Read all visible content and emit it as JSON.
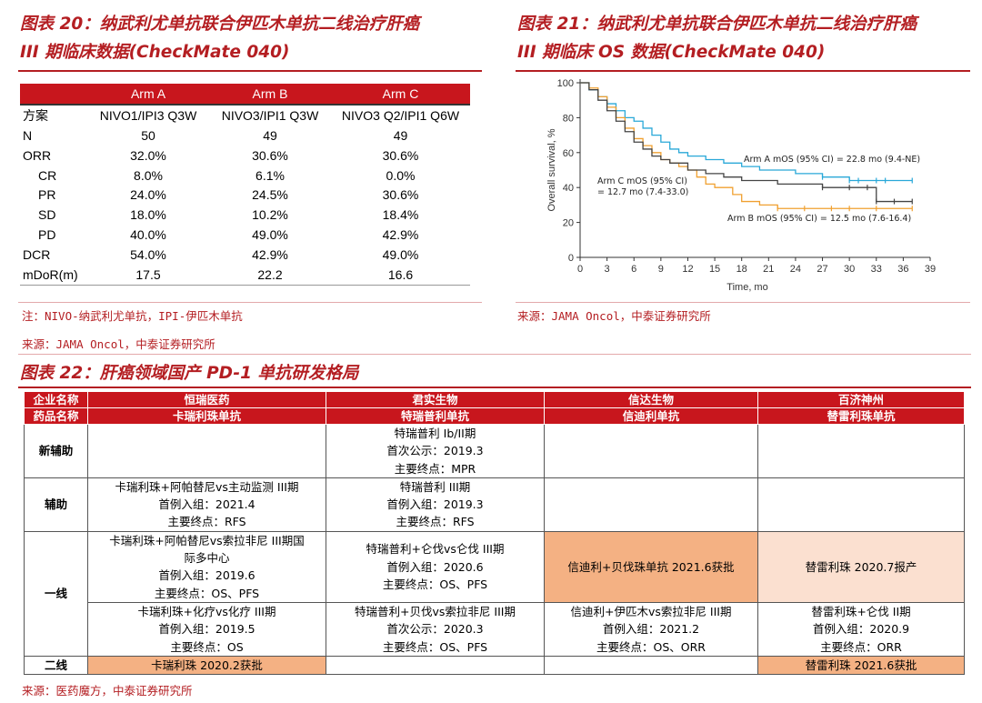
{
  "fig20": {
    "title_line1": "图表 20：纳武利尤单抗联合伊匹木单抗二线治疗肝癌",
    "title_line2": "III 期临床数据(CheckMate 040)",
    "columns": [
      "",
      "Arm A",
      "Arm B",
      "Arm C"
    ],
    "rows": [
      {
        "label": "方案",
        "a": "NIVO1/IPI3 Q3W",
        "b": "NIVO3/IPI1 Q3W",
        "c": "NIVO3 Q2/IPI1 Q6W"
      },
      {
        "label": "N",
        "a": "50",
        "b": "49",
        "c": "49"
      },
      {
        "label": "ORR",
        "a": "32.0%",
        "b": "30.6%",
        "c": "30.6%"
      },
      {
        "label": "CR",
        "a": "8.0%",
        "b": "6.1%",
        "c": "0.0%"
      },
      {
        "label": "PR",
        "a": "24.0%",
        "b": "24.5%",
        "c": "30.6%"
      },
      {
        "label": "SD",
        "a": "18.0%",
        "b": "10.2%",
        "c": "18.4%"
      },
      {
        "label": "PD",
        "a": "40.0%",
        "b": "49.0%",
        "c": "42.9%"
      },
      {
        "label": "DCR",
        "a": "54.0%",
        "b": "42.9%",
        "c": "49.0%"
      },
      {
        "label": "mDoR(m)",
        "a": "17.5",
        "b": "22.2",
        "c": "16.6"
      }
    ],
    "note": "注：NIVO-纳武利尤单抗，IPI-伊匹木单抗",
    "source": "来源：JAMA Oncol，中泰证券研究所"
  },
  "fig21": {
    "title_line1": "图表 21：纳武利尤单抗联合伊匹木单抗二线治疗肝癌",
    "title_line2": "III 期临床 OS 数据(CheckMate 040)",
    "source": "来源：JAMA Oncol，中泰证券研究所"
  },
  "chart_data": {
    "type": "line",
    "title": "",
    "xlabel": "Time, mo",
    "ylabel": "Overall survival, %",
    "xlim": [
      0,
      39
    ],
    "ylim": [
      0,
      100
    ],
    "xticks": [
      0,
      3,
      6,
      9,
      12,
      15,
      18,
      21,
      24,
      27,
      30,
      33,
      36,
      39
    ],
    "yticks": [
      0,
      20,
      40,
      60,
      80,
      100
    ],
    "series": [
      {
        "name": "Arm A",
        "color": "#29a8d8",
        "x": [
          0,
          1,
          2,
          3,
          4,
          5,
          6,
          7,
          8,
          9,
          10,
          11,
          12,
          14,
          16,
          18,
          20,
          22,
          24,
          27,
          30,
          31,
          33,
          34,
          37
        ],
        "y": [
          100,
          96,
          92,
          88,
          84,
          80,
          78,
          74,
          70,
          66,
          62,
          60,
          58,
          56,
          54,
          52,
          50,
          50,
          48,
          46,
          44,
          44,
          44,
          44,
          44
        ]
      },
      {
        "name": "Arm B",
        "color": "#f0a030",
        "x": [
          0,
          1,
          2,
          3,
          4,
          5,
          6,
          7,
          8,
          9,
          10,
          11,
          12,
          13,
          14,
          15,
          17,
          18,
          20,
          22,
          25,
          28,
          30,
          33,
          37
        ],
        "y": [
          100,
          97,
          92,
          86,
          80,
          74,
          68,
          64,
          60,
          56,
          54,
          52,
          50,
          46,
          42,
          40,
          36,
          32,
          30,
          28,
          28,
          28,
          28,
          28,
          28
        ]
      },
      {
        "name": "Arm C",
        "color": "#444444",
        "x": [
          0,
          1,
          2,
          3,
          4,
          5,
          6,
          7,
          8,
          9,
          10,
          12,
          14,
          16,
          18,
          20,
          22,
          24,
          27,
          30,
          32,
          33,
          35,
          37
        ],
        "y": [
          100,
          96,
          90,
          84,
          78,
          72,
          66,
          62,
          58,
          56,
          54,
          50,
          48,
          46,
          44,
          44,
          42,
          42,
          40,
          40,
          40,
          32,
          32,
          32
        ]
      }
    ],
    "annotations": {
      "arm_a": "Arm A mOS (95% CI) = 22.8 mo (9.4-NE)",
      "arm_b": "Arm B mOS (95% CI) = 12.5 mo (7.6-16.4)",
      "arm_c_line1": "Arm C mOS (95% CI)",
      "arm_c_line2": "= 12.7 mo (7.4-33.0)"
    }
  },
  "fig22": {
    "title": "图表 22：肝癌领域国产 PD-1 单抗研发格局",
    "header_company_label": "企业名称",
    "header_drug_label": "药品名称",
    "companies": [
      "恒瑞医药",
      "君实生物",
      "信达生物",
      "百济神州"
    ],
    "drugs": [
      "卡瑞利珠单抗",
      "特瑞普利单抗",
      "信迪利单抗",
      "替雷利珠单抗"
    ],
    "row_labels": {
      "neoadjuvant": "新辅助",
      "adjuvant": "辅助",
      "first_line": "一线",
      "second_line": "二线"
    },
    "cells": {
      "neo_junshi": [
        "特瑞普利 Ib/II期",
        "首次公示：2019.3",
        "主要终点：MPR"
      ],
      "adj_hengrui": [
        "卡瑞利珠+阿帕替尼vs主动监测 III期",
        "首例入组：2021.4",
        "主要终点：RFS"
      ],
      "adj_junshi": [
        "特瑞普利 III期",
        "首例入组：2019.3",
        "主要终点：RFS"
      ],
      "fl1_hengrui": [
        "卡瑞利珠+阿帕替尼vs索拉非尼 III期国",
        "际多中心",
        "首例入组：2019.6",
        "主要终点：OS、PFS"
      ],
      "fl1_junshi": [
        "特瑞普利+仑伐vs仑伐 III期",
        "首例入组：2020.6",
        "主要终点：OS、PFS"
      ],
      "fl1_xinda": "信迪利+贝伐珠单抗 2021.6获批",
      "fl1_baiji": "替雷利珠 2020.7报产",
      "fl2_hengrui": [
        "卡瑞利珠+化疗vs化疗 III期",
        "首例入组：2019.5",
        "主要终点：OS"
      ],
      "fl2_junshi": [
        "特瑞普利+贝伐vs索拉非尼 III期",
        "首次公示：2020.3",
        "主要终点：OS、PFS"
      ],
      "fl2_xinda": [
        "信迪利+伊匹木vs索拉非尼 III期",
        "首例入组：2021.2",
        "主要终点：OS、ORR"
      ],
      "fl2_baiji": [
        "替雷利珠+仑伐 II期",
        "首例入组：2020.9",
        "主要终点：ORR"
      ],
      "sl_hengrui": "卡瑞利珠 2020.2获批",
      "sl_baiji": "替雷利珠 2021.6获批"
    },
    "source": "来源：医药魔方，中泰证券研究所"
  },
  "colors": {
    "accent": "#b41e22",
    "header_red": "#c8161d",
    "highlight_orange": "#f4b183",
    "highlight_light": "#fbe0d0"
  }
}
